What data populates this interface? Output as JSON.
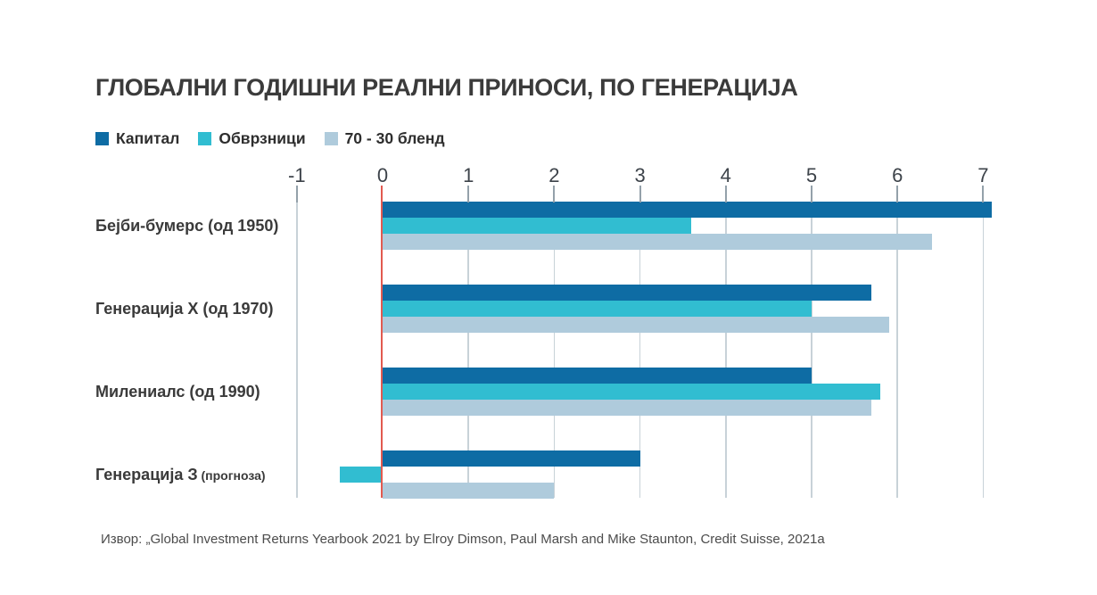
{
  "title": "ГЛОБАЛНИ ГОДИШНИ РЕАЛНИ ПРИНОСИ, ПО ГЕНЕРАЦИЈА",
  "legend": [
    {
      "label": "Капитал",
      "color": "#0e6ca4"
    },
    {
      "label": "Обврзници",
      "color": "#31bdd1"
    },
    {
      "label": "70 - 30 бленд",
      "color": "#afcbdc"
    }
  ],
  "source": "Извор: „Global Investment Returns Yearbook 2021 by Elroy Dimson, Paul Marsh and Mike Staunton, Credit Suisse, 2021a",
  "chart_data": {
    "type": "bar",
    "orientation": "horizontal",
    "title": "ГЛОБАЛНИ ГОДИШНИ РЕАЛНИ ПРИНОСИ, ПО ГЕНЕРАЦИЈА",
    "categories": [
      {
        "label": "Бејби-бумерс (од 1950)",
        "note": ""
      },
      {
        "label": "Генерација X (од 1970)",
        "note": ""
      },
      {
        "label": "Милениалс (од 1990)",
        "note": ""
      },
      {
        "label": "Генерација З",
        "note": "(прогноза)"
      }
    ],
    "series": [
      {
        "name": "Капитал",
        "color": "#0e6ca4",
        "values": [
          7.1,
          5.7,
          5.0,
          3.0
        ]
      },
      {
        "name": "Обврзници",
        "color": "#31bdd1",
        "values": [
          3.6,
          5.0,
          5.8,
          -0.5
        ]
      },
      {
        "name": "70 - 30 бленд",
        "color": "#afcbdc",
        "values": [
          6.4,
          5.9,
          5.7,
          2.0
        ]
      }
    ],
    "x_ticks": [
      -1,
      0,
      1,
      2,
      3,
      4,
      5,
      6,
      7
    ],
    "xlim": [
      -1,
      7
    ],
    "grid": true,
    "legend_position": "top",
    "zero_line_color": "#e25a50",
    "gridline_color": "#c8d2d8",
    "tick_mark_color": "#94a1aa"
  }
}
